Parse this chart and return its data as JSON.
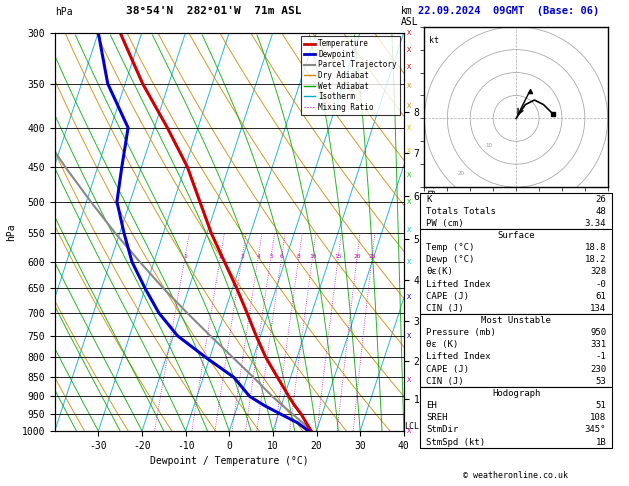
{
  "title_left": "38°54'N  282°01'W  71m ASL",
  "title_right": "22.09.2024  09GMT  (Base: 06)",
  "xlabel": "Dewpoint / Temperature (°C)",
  "ylabel_left": "hPa",
  "pressure_major": [
    300,
    350,
    400,
    450,
    500,
    550,
    600,
    650,
    700,
    750,
    800,
    850,
    900,
    950,
    1000
  ],
  "temp_profile_p": [
    1000,
    975,
    950,
    925,
    900,
    850,
    800,
    750,
    700,
    650,
    600,
    550,
    500,
    450,
    400,
    350,
    300
  ],
  "temp_profile_t": [
    18.8,
    17.0,
    15.2,
    13.0,
    11.0,
    7.0,
    2.8,
    -1.0,
    -4.8,
    -9.0,
    -13.8,
    -19.0,
    -24.0,
    -29.5,
    -37.0,
    -46.0,
    -55.0
  ],
  "dewp_profile_p": [
    1000,
    975,
    950,
    925,
    900,
    850,
    800,
    750,
    700,
    650,
    600,
    550,
    500,
    450,
    400,
    350,
    300
  ],
  "dewp_profile_t": [
    18.2,
    15.0,
    10.5,
    6.0,
    2.0,
    -3.0,
    -11.0,
    -19.0,
    -25.0,
    -30.0,
    -35.0,
    -39.0,
    -43.0,
    -44.5,
    -46.0,
    -54.0,
    -60.0
  ],
  "parcel_profile_p": [
    1000,
    975,
    950,
    925,
    900,
    850,
    800,
    750,
    700,
    650,
    600,
    550,
    500,
    450,
    400,
    350,
    300
  ],
  "parcel_profile_t": [
    18.8,
    16.2,
    13.2,
    10.2,
    7.2,
    1.5,
    -4.8,
    -11.5,
    -18.5,
    -25.8,
    -33.2,
    -41.0,
    -49.0,
    -57.5,
    -66.5,
    -76.0,
    -85.0
  ],
  "km_ticks": [
    1,
    2,
    3,
    4,
    5,
    6,
    7,
    8
  ],
  "km_pressures": [
    907,
    808,
    718,
    634,
    559,
    491,
    432,
    381
  ],
  "mixing_ratio_lines": [
    1,
    2,
    3,
    4,
    5,
    6,
    8,
    10,
    15,
    20,
    25
  ],
  "color_temp": "#cc0000",
  "color_dewp": "#0000cc",
  "color_parcel": "#888888",
  "color_dry_adiabat": "#cc8800",
  "color_wet_adiabat": "#00aa00",
  "color_isotherm": "#00aacc",
  "color_mixing_ratio": "#cc00cc",
  "background": "#ffffff",
  "stats": {
    "K": "26",
    "Totals_Totals": "48",
    "PW_cm": "3.34",
    "Surface_Temp": "18.8",
    "Surface_Dewp": "18.2",
    "Surface_ThetaE": "328",
    "Surface_LI": "-0",
    "Surface_CAPE": "61",
    "Surface_CIN": "134",
    "MU_Pressure": "950",
    "MU_ThetaE": "331",
    "MU_LI": "-1",
    "MU_CAPE": "230",
    "MU_CIN": "53",
    "EH": "51",
    "SREH": "108",
    "StmDir": "345°",
    "StmSpd": "1B"
  }
}
